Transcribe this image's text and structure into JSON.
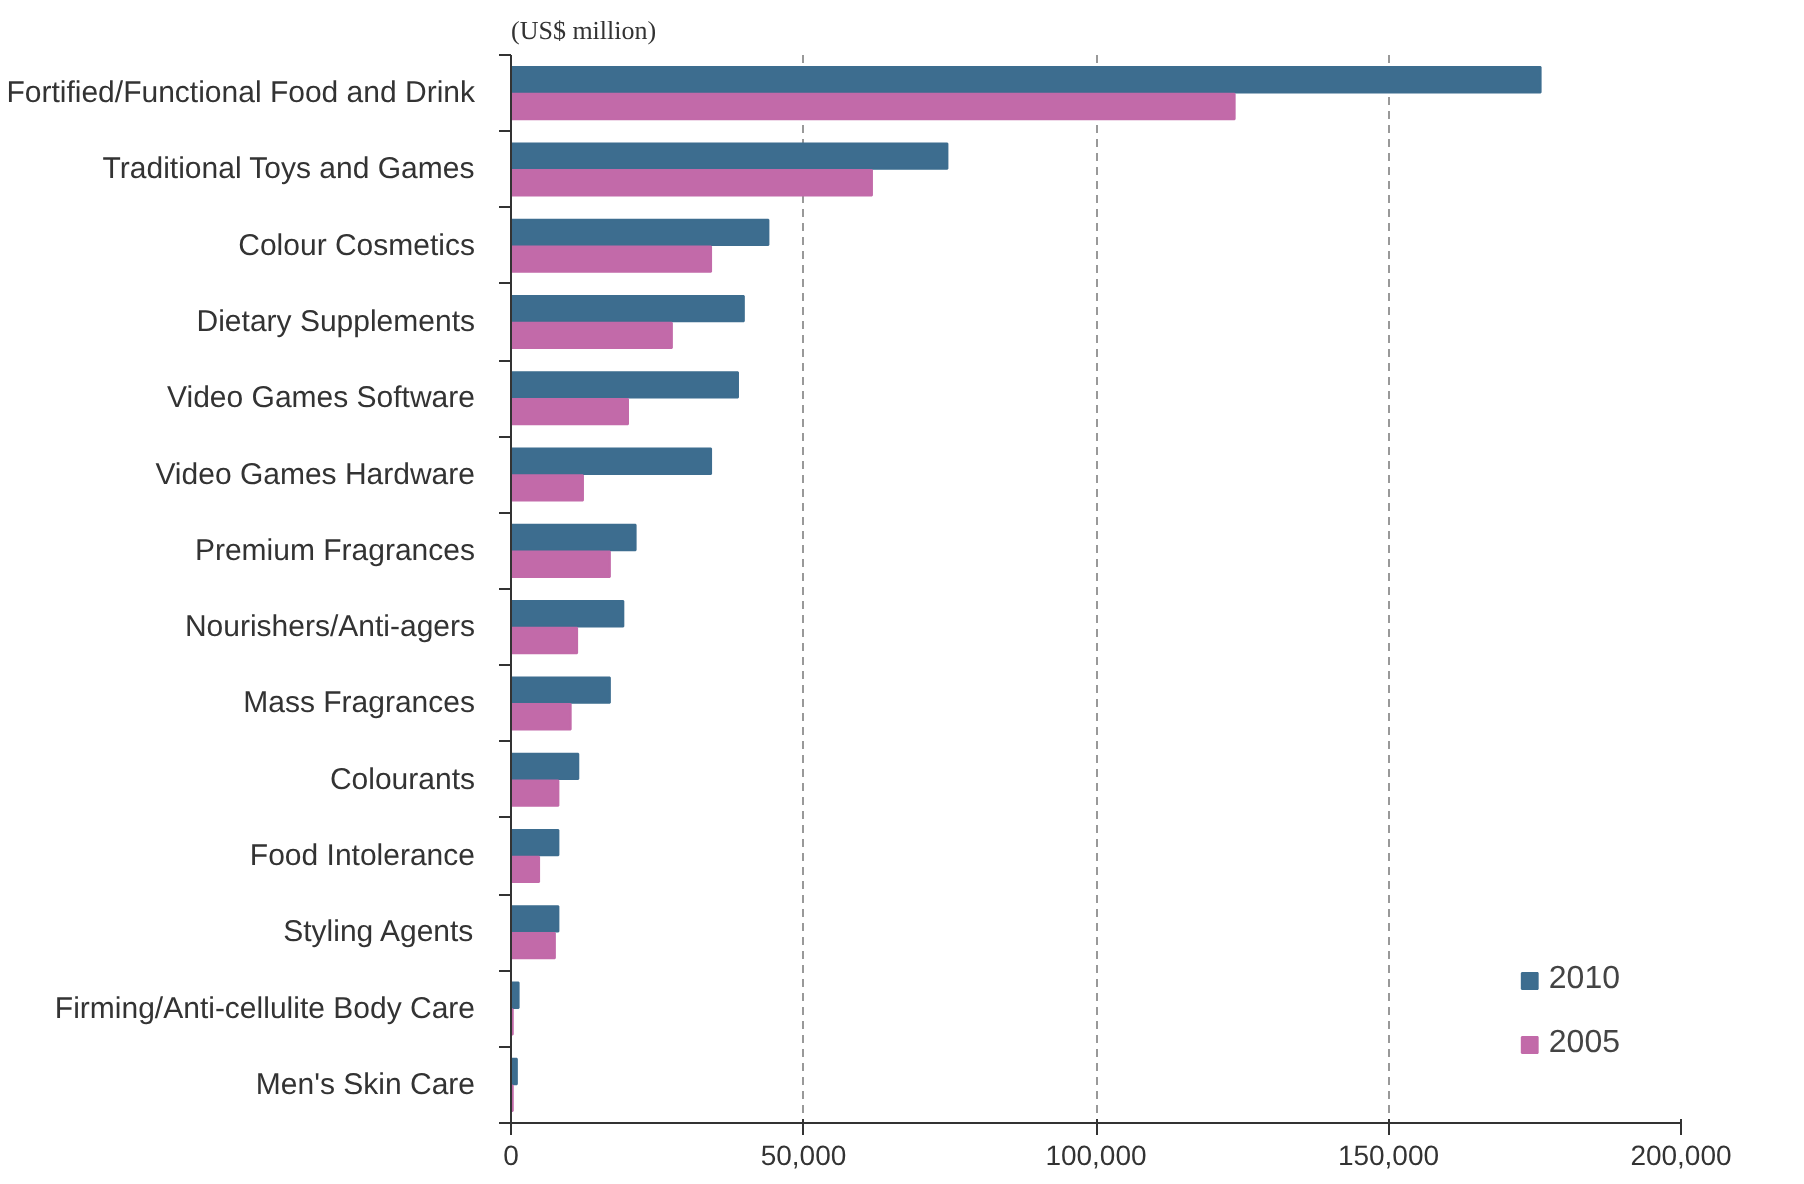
{
  "chart_data": {
    "type": "bar",
    "orientation": "horizontal",
    "title": "(US$ million)",
    "categories": [
      "Fortified/Functional Food and Drink",
      "Traditional Toys and Games",
      "Colour Cosmetics",
      "Dietary Supplements",
      "Video Games Software",
      "Video Games Hardware",
      "Premium Fragrances",
      "Nourishers/Anti-agers",
      "Mass Fragrances",
      "Colourants",
      "Food Intolerance",
      "Styling Agents",
      "Firming/Anti-cellulite Body Care",
      "Men's Skin Care"
    ],
    "series": [
      {
        "name": "2010",
        "color": "#3d6d8f",
        "values": [
          176000,
          74600,
          44000,
          39800,
          38800,
          34200,
          21300,
          19200,
          16900,
          11500,
          8100,
          8100,
          1300,
          1000
        ]
      },
      {
        "name": "2005",
        "color": "#c26aa9",
        "values": [
          123700,
          61700,
          34200,
          27500,
          20000,
          12300,
          16900,
          11300,
          10200,
          8100,
          4800,
          7500,
          300,
          300
        ]
      }
    ],
    "xlim": [
      0,
      200000
    ],
    "xticks": [
      {
        "value": 0,
        "label": "0"
      },
      {
        "value": 50000,
        "label": "50,000"
      },
      {
        "value": 100000,
        "label": "100,000"
      },
      {
        "value": 150000,
        "label": "150,000"
      },
      {
        "value": 200000,
        "label": "200,000"
      }
    ],
    "grid": "x",
    "legend": "bottom right"
  }
}
